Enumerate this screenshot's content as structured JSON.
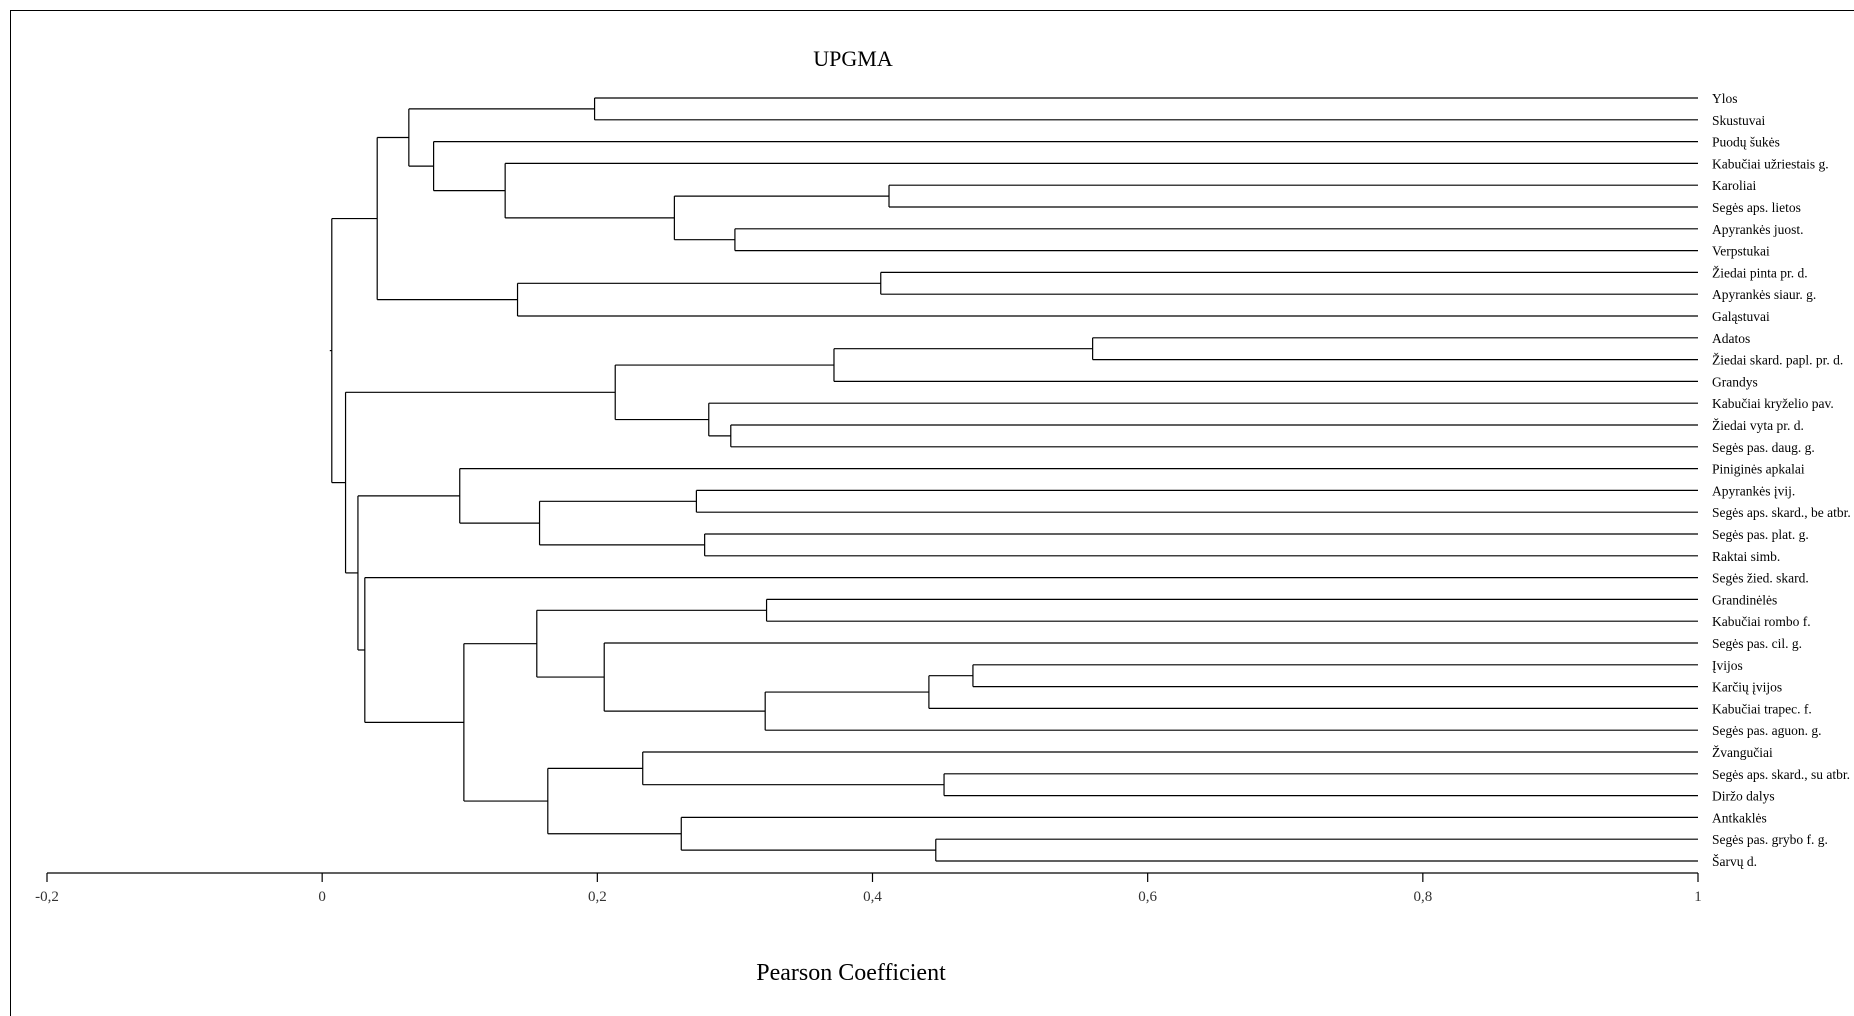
{
  "chart_data": {
    "type": "dendrogram",
    "title": "UPGMA",
    "xlabel": "Pearson Coefficient",
    "xlim": [
      -0.2,
      1
    ],
    "ticks": [
      {
        "value": -0.2,
        "label": "-0,2"
      },
      {
        "value": 0,
        "label": "0"
      },
      {
        "value": 0.2,
        "label": "0,2"
      },
      {
        "value": 0.4,
        "label": "0,4"
      },
      {
        "value": 0.6,
        "label": "0,6"
      },
      {
        "value": 0.8,
        "label": "0,8"
      },
      {
        "value": 1,
        "label": "1"
      }
    ],
    "leaves": [
      "Ylos",
      "Skustuvai",
      "Puodų šukės",
      "Kabučiai užriestais g.",
      "Karoliai",
      "Segės aps. lietos",
      "Apyrankės juost.",
      "Verpstukai",
      "Žiedai pinta pr. d.",
      "Apyrankės siaur. g.",
      "Galąstuvai",
      "Adatos",
      "Žiedai skard. papl. pr. d.",
      "Grandys",
      "Kabučiai kryželio pav.",
      "Žiedai vyta pr. d.",
      "Segės pas. daug. g.",
      "Piniginės apkalai",
      "Apyrankės įvij.",
      "Segės aps. skard., be atbr.",
      "Segės pas. plat. g.",
      "Raktai simb.",
      "Segės žied. skard.",
      "Grandinėlės",
      "Kabučiai rombo f.",
      "Segės pas. cil. g.",
      "Įvijos",
      "Karčių įvijos",
      "Kabučiai trapec. f.",
      "Segės pas. aguon. g.",
      "Žvangučiai",
      "Segės aps. skard., su atbr.",
      "Diržo dalys",
      "Antkaklės",
      "Segės pas. grybo f. g.",
      "Šarvų d."
    ],
    "merges": [
      {
        "a": "Ylos",
        "b": "Skustuvai",
        "height": 0.198
      },
      {
        "a": "Karoliai",
        "b": "Segės aps. lietos",
        "height": 0.412
      },
      {
        "a": "Apyrankės juost.",
        "b": "Verpstukai",
        "height": 0.3
      },
      {
        "a": 1,
        "b": 2,
        "height": 0.256
      },
      {
        "a": "Kabučiai užriestais g.",
        "b": 3,
        "height": 0.133
      },
      {
        "a": "Puodų šukės",
        "b": 4,
        "height": 0.081
      },
      {
        "a": 0,
        "b": 5,
        "height": 0.063
      },
      {
        "a": "Žiedai pinta pr. d.",
        "b": "Apyrankės siaur. g.",
        "height": 0.406
      },
      {
        "a": 7,
        "b": "Galąstuvai",
        "height": 0.142
      },
      {
        "a": 6,
        "b": 8,
        "height": 0.04
      },
      {
        "a": "Adatos",
        "b": "Žiedai skard. papl. pr. d.",
        "height": 0.56
      },
      {
        "a": 10,
        "b": "Grandys",
        "height": 0.372
      },
      {
        "a": "Žiedai vyta pr. d.",
        "b": "Segės pas. daug. g.",
        "height": 0.297
      },
      {
        "a": "Kabučiai kryželio pav.",
        "b": 12,
        "height": 0.281
      },
      {
        "a": 11,
        "b": 13,
        "height": 0.213
      },
      {
        "a": "Apyrankės įvij.",
        "b": "Segės aps. skard., be atbr.",
        "height": 0.272
      },
      {
        "a": "Segės pas. plat. g.",
        "b": "Raktai simb.",
        "height": 0.278
      },
      {
        "a": 15,
        "b": 16,
        "height": 0.158
      },
      {
        "a": "Piniginės apkalai",
        "b": 17,
        "height": 0.1
      },
      {
        "a": "Grandinėlės",
        "b": "Kabučiai rombo f.",
        "height": 0.323
      },
      {
        "a": "Įvijos",
        "b": "Karčių įvijos",
        "height": 0.473
      },
      {
        "a": 20,
        "b": "Kabučiai trapec. f.",
        "height": 0.441
      },
      {
        "a": 21,
        "b": "Segės pas. aguon. g.",
        "height": 0.322
      },
      {
        "a": "Segės pas. cil. g.",
        "b": 22,
        "height": 0.205
      },
      {
        "a": 19,
        "b": 23,
        "height": 0.156
      },
      {
        "a": "Segės aps. skard., su atbr.",
        "b": "Diržo dalys",
        "height": 0.452
      },
      {
        "a": "Žvangučiai",
        "b": 25,
        "height": 0.233
      },
      {
        "a": "Segės pas. grybo f. g.",
        "b": "Šarvų d.",
        "height": 0.446
      },
      {
        "a": "Antkaklės",
        "b": 27,
        "height": 0.261
      },
      {
        "a": 26,
        "b": 28,
        "height": 0.164
      },
      {
        "a": 24,
        "b": 29,
        "height": 0.103
      },
      {
        "a": "Segės žied. skard.",
        "b": 30,
        "height": 0.031
      },
      {
        "a": 18,
        "b": 31,
        "height": 0.026
      },
      {
        "a": 14,
        "b": 32,
        "height": 0.017
      },
      {
        "a": 9,
        "b": 33,
        "height": 0.007
      }
    ],
    "grid": false,
    "legend": "none"
  }
}
